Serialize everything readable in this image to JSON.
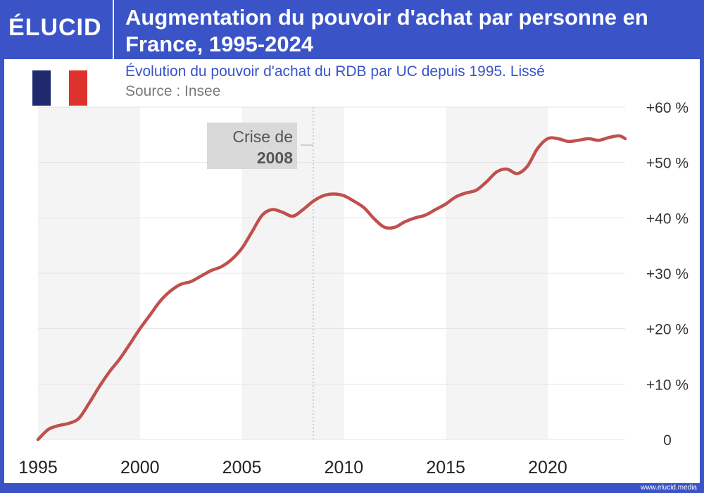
{
  "header": {
    "logo": "ÉLUCID",
    "title": "Augmentation du pouvoir d'achat par personne en France, 1995-2024"
  },
  "subtitle": "Évolution du pouvoir d'achat du RDB par UC depuis 1995. Lissé",
  "source": "Source : Insee",
  "flag_colors": [
    "#1f2a6e",
    "#ffffff",
    "#e0322d"
  ],
  "footer": "www.elucid.media",
  "chart_data": {
    "type": "line",
    "x_ticks": [
      "1995",
      "2000",
      "2005",
      "2010",
      "2015",
      "2020"
    ],
    "y_ticks": [
      "0",
      "+10 %",
      "+20 %",
      "+30 %",
      "+40 %",
      "+50 %",
      "+60 %"
    ],
    "xlim": [
      1995,
      2023.8
    ],
    "ylim": [
      0,
      60
    ],
    "grid": true,
    "line_color": "#c0504d",
    "annotation": {
      "line1": "Crise de",
      "line2": "2008",
      "x": 2008.5
    },
    "x": [
      1995,
      1995.5,
      1996,
      1996.5,
      1997,
      1997.5,
      1998,
      1998.5,
      1999,
      1999.5,
      2000,
      2000.5,
      2001,
      2001.5,
      2002,
      2002.5,
      2003,
      2003.5,
      2004,
      2004.5,
      2005,
      2005.5,
      2006,
      2006.5,
      2007,
      2007.5,
      2008,
      2008.5,
      2009,
      2009.5,
      2010,
      2010.5,
      2011,
      2011.5,
      2012,
      2012.5,
      2013,
      2013.5,
      2014,
      2014.5,
      2015,
      2015.5,
      2016,
      2016.5,
      2017,
      2017.5,
      2018,
      2018.5,
      2019,
      2019.5,
      2020,
      2020.5,
      2021,
      2021.5,
      2022,
      2022.5,
      2023,
      2023.5,
      2023.8
    ],
    "values": [
      0,
      1.8,
      2.5,
      2.9,
      3.8,
      6.5,
      9.5,
      12.2,
      14.5,
      17.2,
      20.0,
      22.5,
      25.0,
      26.8,
      28.0,
      28.5,
      29.5,
      30.5,
      31.2,
      32.5,
      34.5,
      37.5,
      40.5,
      41.5,
      41.0,
      40.3,
      41.5,
      43.0,
      44.0,
      44.3,
      44.0,
      43.0,
      41.8,
      39.8,
      38.3,
      38.3,
      39.3,
      40.0,
      40.5,
      41.5,
      42.5,
      43.8,
      44.5,
      45.0,
      46.5,
      48.3,
      48.8,
      48.0,
      49.3,
      52.5,
      54.3,
      54.3,
      53.8,
      54.0,
      54.3,
      54.0,
      54.5,
      54.8,
      54.3
    ]
  }
}
